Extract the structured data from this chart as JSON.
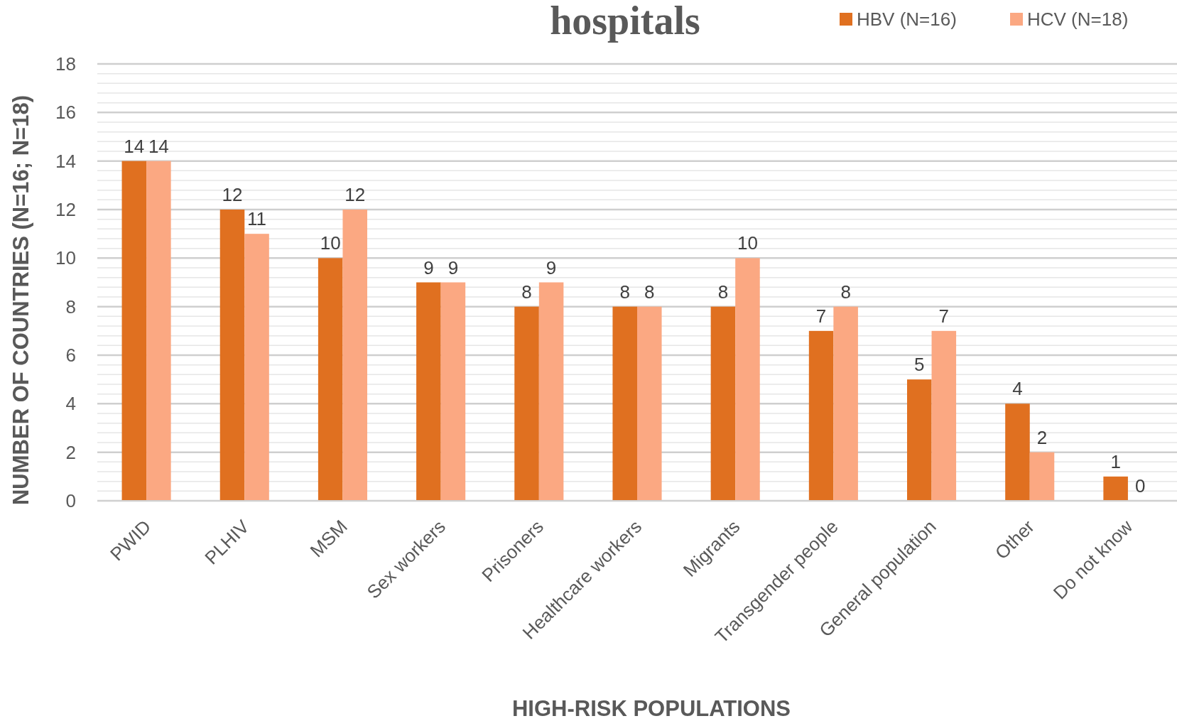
{
  "chart_data": {
    "type": "bar",
    "title": "hospitals",
    "xlabel": "HIGH-RISK POPULATIONS",
    "ylabel": "NUMBER OF COUNTRIES (N=16; N=18)",
    "categories": [
      "PWID",
      "PLHIV",
      "MSM",
      "Sex workers",
      "Prisoners",
      "Healthcare workers",
      "Migrants",
      "Transgender people",
      "General population",
      "Other",
      "Do not know"
    ],
    "series": [
      {
        "name": "HBV (N=16)",
        "color": "#e07020",
        "values": [
          14,
          12,
          10,
          9,
          8,
          8,
          8,
          7,
          5,
          4,
          1
        ]
      },
      {
        "name": "HCV (N=18)",
        "color": "#fba882",
        "values": [
          14,
          11,
          12,
          9,
          9,
          8,
          10,
          8,
          7,
          2,
          0
        ]
      }
    ],
    "ylim": [
      0,
      18
    ],
    "yticks": [
      0,
      {
        "value": 0.4,
        "label": null
      },
      {
        "value": 0.8,
        "label": null
      },
      {
        "value": 1.2,
        "label": null
      },
      {
        "value": 1.6,
        "label": null
      },
      2,
      {
        "value": 2.4,
        "label": null
      },
      {
        "value": 2.8,
        "label": null
      },
      {
        "value": 3.2,
        "label": null
      },
      {
        "value": 3.6,
        "label": null
      },
      4,
      {
        "value": 4.4,
        "label": null
      },
      {
        "value": 4.8,
        "label": null
      },
      {
        "value": 5.2,
        "label": null
      },
      {
        "value": 5.6,
        "label": null
      },
      6,
      {
        "value": 6.4,
        "label": null
      },
      {
        "value": 6.8,
        "label": null
      },
      {
        "value": 7.2,
        "label": null
      },
      {
        "value": 7.6,
        "label": null
      },
      8,
      {
        "value": 8.4,
        "label": null
      },
      {
        "value": 8.8,
        "label": null
      },
      {
        "value": 9.2,
        "label": null
      },
      {
        "value": 9.6,
        "label": null
      },
      10,
      {
        "value": 10.4,
        "label": null
      },
      {
        "value": 10.8,
        "label": null
      },
      {
        "value": 11.2,
        "label": null
      },
      {
        "value": 11.6,
        "label": null
      },
      12,
      {
        "value": 12.4,
        "label": null
      },
      {
        "value": 12.8,
        "label": null
      },
      {
        "value": 13.2,
        "label": null
      },
      {
        "value": 13.6,
        "label": null
      },
      14,
      {
        "value": 14.4,
        "label": null
      },
      {
        "value": 14.8,
        "label": null
      },
      {
        "value": 15.2,
        "label": null
      },
      {
        "value": 15.6,
        "label": null
      },
      16,
      {
        "value": 16.4,
        "label": null
      },
      {
        "value": 16.8,
        "label": null
      },
      {
        "value": 17.2,
        "label": null
      },
      {
        "value": 17.6,
        "label": null
      },
      18
    ],
    "grid": "y",
    "legend": "top right",
    "data_labels": true
  }
}
